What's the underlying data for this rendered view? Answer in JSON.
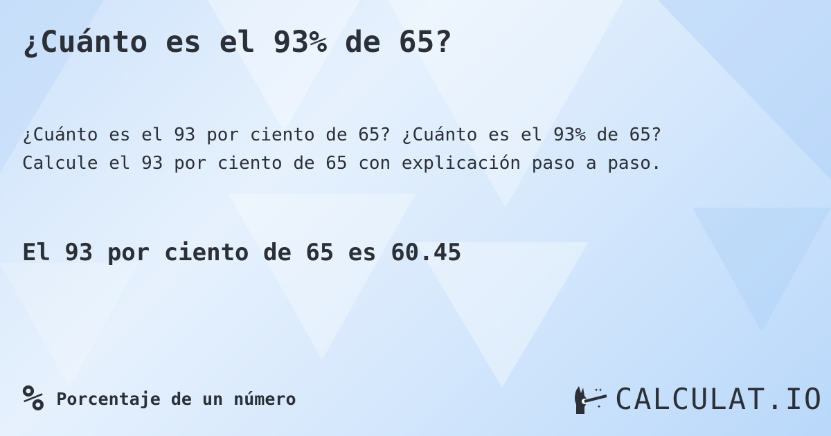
{
  "title": "¿Cuánto es el 93% de 65?",
  "description": {
    "line1": "¿Cuánto es el 93 por ciento de 65? ¿Cuánto es el 93% de 65?",
    "line2": "Calcule el 93 por ciento de 65 con explicación paso a paso."
  },
  "answer": "El 93 por ciento de 65 es 60.45",
  "footer": {
    "category_icon": "%",
    "category_label": "Porcentaje de un número"
  },
  "logo": {
    "text": "CALCULAT.IO",
    "icon": "magic-hand-wand-icon"
  },
  "colors": {
    "text": "#2b3038",
    "background": "#d6e8fc"
  }
}
